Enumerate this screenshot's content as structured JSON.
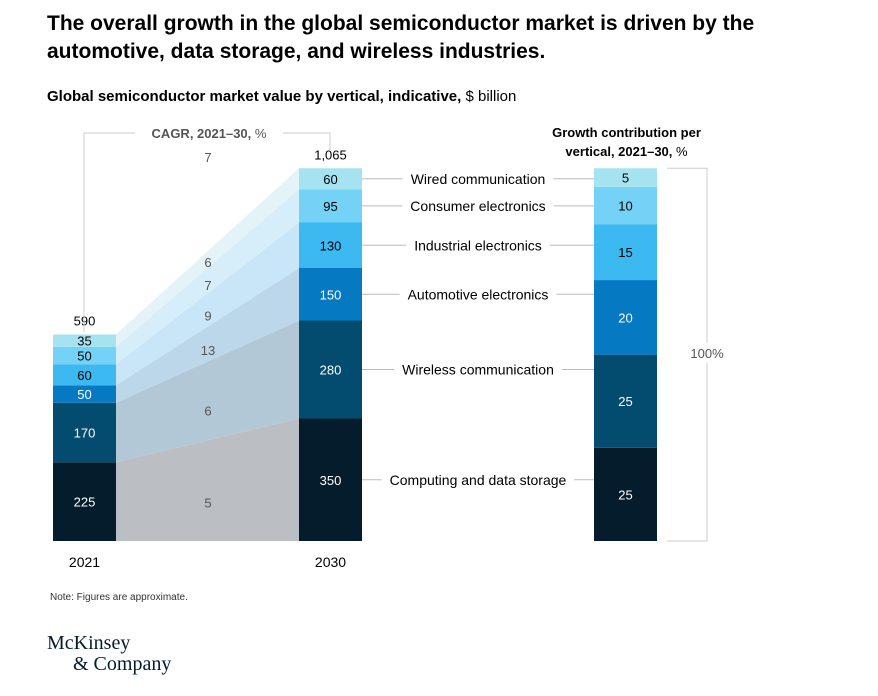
{
  "header": {
    "title": "The overall growth in the global semiconductor market is driven by the automotive, data storage, and wireless industries.",
    "subtitle_bold": "Global semiconductor market value by vertical, indicative,",
    "subtitle_unit": "$ billion"
  },
  "chart_data": {
    "type": "bar",
    "x": [
      "2021",
      "2030"
    ],
    "totals": [
      "590",
      "1,065"
    ],
    "cagr_label": "CAGR, 2021–30,",
    "cagr_unit": "%",
    "contribution_title_line1": "Growth contribution per",
    "contribution_title_line2": "vertical, 2021–30,",
    "contribution_unit": "%",
    "contribution_total": "100%",
    "series": [
      {
        "name": "Computing and data storage",
        "values": [
          225,
          350
        ],
        "cagr": "5",
        "contribution": 25,
        "color": "#051c2c"
      },
      {
        "name": "Wireless communication",
        "values": [
          170,
          280
        ],
        "cagr": "6",
        "contribution": 25,
        "color": "#034b6f"
      },
      {
        "name": "Automotive electronics",
        "values": [
          50,
          150
        ],
        "cagr": "13",
        "contribution": 20,
        "color": "#0679c3"
      },
      {
        "name": "Industrial electronics",
        "values": [
          60,
          130
        ],
        "cagr": "9",
        "contribution": 15,
        "color": "#3bb9f0"
      },
      {
        "name": "Consumer electronics",
        "values": [
          50,
          95
        ],
        "cagr": "7",
        "contribution": 10,
        "color": "#73d2f5"
      },
      {
        "name": "Wired communication",
        "values": [
          35,
          60
        ],
        "cagr": "6",
        "contribution": 5,
        "color": "#a4e3ef"
      }
    ],
    "extra_cagr_label": "7"
  },
  "footer": {
    "note": "Note: Figures are approximate.",
    "logo_line1": "McKinsey",
    "logo_line2": "& Company"
  }
}
